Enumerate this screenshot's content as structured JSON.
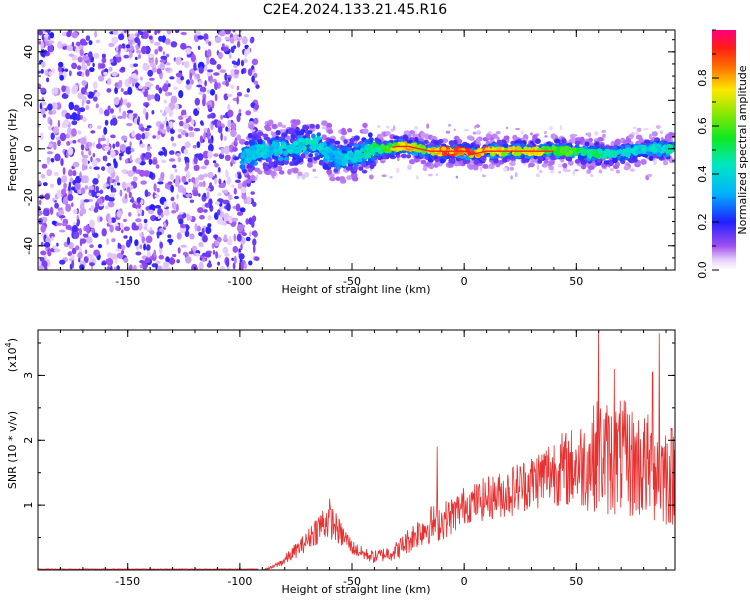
{
  "title": "C2E4.2024.133.21.45.R16",
  "chart_data": [
    {
      "type": "heatmap",
      "xlabel": "Height of straight line (km)",
      "ylabel": "Frequency (Hz)",
      "xlim": [
        -190,
        94
      ],
      "ylim": [
        -50,
        49
      ],
      "x_ticks": [
        -150,
        -100,
        -50,
        0,
        50
      ],
      "y_ticks": [
        -40,
        -20,
        0,
        20,
        40
      ],
      "colorbar": {
        "label": "Normalized spectral amplitude",
        "range": [
          0,
          1
        ],
        "ticks": [
          0.0,
          0.2,
          0.4,
          0.6,
          0.8
        ],
        "tick_labels": [
          "0.0",
          "0.2",
          "0.4",
          "0.6",
          "0.8"
        ]
      },
      "noise_region": [
        -190,
        -95
      ],
      "ridge": [
        {
          "x": -99,
          "y": -4,
          "amp": 0.35
        },
        {
          "x": -95,
          "y": -2,
          "amp": 0.4
        },
        {
          "x": -90,
          "y": -1,
          "amp": 0.45
        },
        {
          "x": -85,
          "y": 0,
          "amp": 0.4
        },
        {
          "x": -80,
          "y": 0,
          "amp": 0.45
        },
        {
          "x": -75,
          "y": 1,
          "amp": 0.45
        },
        {
          "x": -70,
          "y": 2,
          "amp": 0.5
        },
        {
          "x": -65,
          "y": 2,
          "amp": 0.45
        },
        {
          "x": -60,
          "y": -2,
          "amp": 0.4
        },
        {
          "x": -55,
          "y": -4,
          "amp": 0.4
        },
        {
          "x": -50,
          "y": -4,
          "amp": 0.45
        },
        {
          "x": -45,
          "y": -2,
          "amp": 0.5
        },
        {
          "x": -40,
          "y": 0,
          "amp": 0.55
        },
        {
          "x": -35,
          "y": 0,
          "amp": 0.65
        },
        {
          "x": -30,
          "y": 1,
          "amp": 0.75
        },
        {
          "x": -25,
          "y": 1,
          "amp": 0.85
        },
        {
          "x": -20,
          "y": 0,
          "amp": 0.8
        },
        {
          "x": -15,
          "y": -1,
          "amp": 0.8
        },
        {
          "x": -10,
          "y": -1,
          "amp": 0.95
        },
        {
          "x": -5,
          "y": -1,
          "amp": 0.95
        },
        {
          "x": 0,
          "y": -1,
          "amp": 0.95
        },
        {
          "x": 5,
          "y": -2,
          "amp": 0.9
        },
        {
          "x": 10,
          "y": -1,
          "amp": 0.9
        },
        {
          "x": 15,
          "y": -1,
          "amp": 0.85
        },
        {
          "x": 20,
          "y": -1,
          "amp": 0.8
        },
        {
          "x": 25,
          "y": -1,
          "amp": 0.8
        },
        {
          "x": 30,
          "y": -1,
          "amp": 0.8
        },
        {
          "x": 35,
          "y": -1,
          "amp": 0.75
        },
        {
          "x": 40,
          "y": -1,
          "amp": 0.7
        },
        {
          "x": 45,
          "y": -1,
          "amp": 0.65
        },
        {
          "x": 50,
          "y": -1,
          "amp": 0.6
        },
        {
          "x": 55,
          "y": -2,
          "amp": 0.55
        },
        {
          "x": 60,
          "y": -2,
          "amp": 0.55
        },
        {
          "x": 65,
          "y": -2,
          "amp": 0.5
        },
        {
          "x": 70,
          "y": -2,
          "amp": 0.5
        },
        {
          "x": 75,
          "y": -1,
          "amp": 0.45
        },
        {
          "x": 80,
          "y": 0,
          "amp": 0.45
        },
        {
          "x": 85,
          "y": 0,
          "amp": 0.45
        },
        {
          "x": 90,
          "y": 0,
          "amp": 0.5
        }
      ]
    },
    {
      "type": "line",
      "xlabel": "Height of straight line (km)",
      "ylabel": "SNR (10 * v/v)",
      "y_exponent_label": "(x10",
      "y_exponent": "4",
      "xlim": [
        -190,
        94
      ],
      "ylim": [
        0,
        3.7
      ],
      "x_ticks": [
        -150,
        -100,
        -50,
        0,
        50
      ],
      "y_ticks": [
        1,
        2,
        3
      ],
      "color": "#e83030",
      "envelope": {
        "x": [
          -190,
          -90,
          -85,
          -80,
          -75,
          -70,
          -68,
          -65,
          -62,
          -60,
          -58,
          -55,
          -52,
          -50,
          -45,
          -40,
          -35,
          -30,
          -25,
          -20,
          -15,
          -10,
          -5,
          0,
          5,
          10,
          15,
          20,
          25,
          30,
          35,
          40,
          45,
          50,
          55,
          60,
          65,
          70,
          75,
          80,
          85,
          90,
          94
        ],
        "center": [
          0.0,
          0.0,
          0.05,
          0.15,
          0.3,
          0.45,
          0.55,
          0.65,
          0.75,
          0.78,
          0.7,
          0.55,
          0.45,
          0.35,
          0.25,
          0.2,
          0.25,
          0.3,
          0.45,
          0.6,
          0.7,
          0.75,
          0.85,
          1.0,
          1.05,
          1.1,
          1.15,
          1.2,
          1.3,
          1.35,
          1.45,
          1.55,
          1.55,
          1.6,
          1.65,
          1.8,
          1.7,
          1.75,
          1.65,
          1.6,
          1.55,
          1.5,
          1.45
        ],
        "spread": [
          0.0,
          0.0,
          0.03,
          0.08,
          0.12,
          0.15,
          0.2,
          0.25,
          0.3,
          0.3,
          0.25,
          0.2,
          0.15,
          0.12,
          0.1,
          0.1,
          0.12,
          0.15,
          0.2,
          0.25,
          0.3,
          0.3,
          0.3,
          0.3,
          0.3,
          0.35,
          0.35,
          0.4,
          0.4,
          0.45,
          0.5,
          0.55,
          0.6,
          0.65,
          0.75,
          0.9,
          0.9,
          0.9,
          0.9,
          0.85,
          0.85,
          0.85,
          0.8
        ]
      },
      "peaks": [
        {
          "x": 60,
          "y": 3.68
        },
        {
          "x": 87,
          "y": 3.65
        },
        {
          "x": 84,
          "y": 3.05
        },
        {
          "x": 67,
          "y": 3.1
        },
        {
          "x": -12,
          "y": 1.9
        },
        {
          "x": -60,
          "y": 1.1
        }
      ]
    }
  ]
}
